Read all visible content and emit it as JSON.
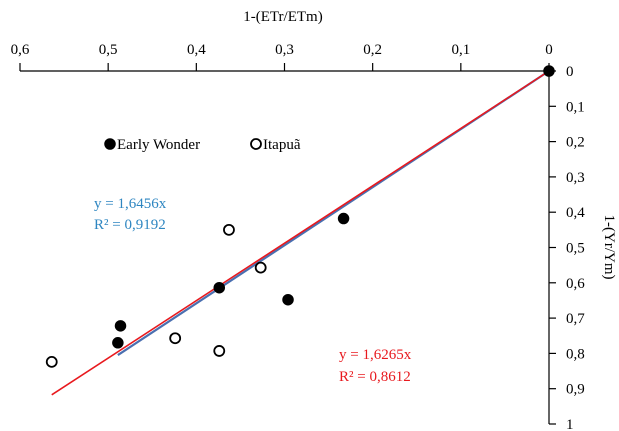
{
  "chart_data": {
    "type": "scatter",
    "title": "",
    "xlabel": "1-(ETr/ETm)",
    "ylabel": "1-(Yr/Ym)",
    "xlim": [
      0,
      0.6
    ],
    "ylim": [
      0,
      1
    ],
    "x_reversed": true,
    "y_reversed": true,
    "x_axis_position": "top",
    "y_axis_position": "right",
    "x_ticks": [
      "0,6",
      "0,5",
      "0,4",
      "0,3",
      "0,2",
      "0,1",
      "0"
    ],
    "x_tick_values": [
      0.6,
      0.5,
      0.4,
      0.3,
      0.2,
      0.1,
      0
    ],
    "y_ticks": [
      "0",
      "0,1",
      "0,2",
      "0,3",
      "0,4",
      "0,5",
      "0,6",
      "0,7",
      "0,8",
      "0,9",
      "1"
    ],
    "y_tick_values": [
      0,
      0.1,
      0.2,
      0.3,
      0.4,
      0.5,
      0.6,
      0.7,
      0.8,
      0.9,
      1
    ],
    "grid": false,
    "legend_position": "upper-left",
    "series": [
      {
        "name": "Early Wonder",
        "marker": "filled-circle",
        "color": "#000000",
        "points": [
          {
            "x": 0,
            "y": 0
          },
          {
            "x": 0.233,
            "y": 0.418
          },
          {
            "x": 0.296,
            "y": 0.648
          },
          {
            "x": 0.374,
            "y": 0.614
          },
          {
            "x": 0.486,
            "y": 0.722
          },
          {
            "x": 0.489,
            "y": 0.77
          }
        ]
      },
      {
        "name": "Itapuã",
        "marker": "open-circle",
        "color": "#000000",
        "points": [
          {
            "x": 0.363,
            "y": 0.45
          },
          {
            "x": 0.327,
            "y": 0.557
          },
          {
            "x": 0.424,
            "y": 0.757
          },
          {
            "x": 0.374,
            "y": 0.793
          },
          {
            "x": 0.564,
            "y": 0.824
          }
        ]
      }
    ],
    "fits": [
      {
        "equation": "y = 1,6456x",
        "r2": "R² = 0,9192",
        "slope": 1.6456,
        "x_range": [
          0,
          0.489
        ],
        "color": "#4a6fb0",
        "label_color": "#2e86c1"
      },
      {
        "equation": "y = 1,6265x",
        "r2": "R² = 0,8612",
        "slope": 1.6265,
        "x_range": [
          0,
          0.564
        ],
        "color": "#e8191e",
        "label_color": "#e8191e"
      }
    ]
  }
}
